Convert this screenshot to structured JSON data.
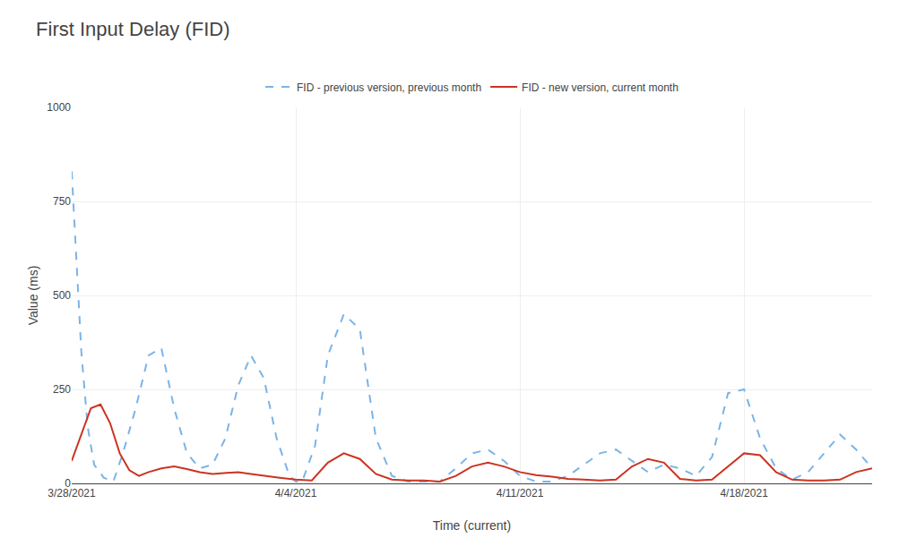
{
  "chart_data": {
    "type": "line",
    "title": "First Input Delay (FID)",
    "xlabel": "Time (current)",
    "ylabel": "Value (ms)",
    "xlim": [
      0,
      25
    ],
    "xticks": [
      {
        "value": 0,
        "label": "3/28/2021"
      },
      {
        "value": 7,
        "label": "4/4/2021"
      },
      {
        "value": 14,
        "label": "4/11/2021"
      },
      {
        "value": 21,
        "label": "4/18/2021"
      }
    ],
    "ylim": [
      0,
      1000
    ],
    "yticks": [
      0,
      250,
      500,
      750,
      1000
    ],
    "grid": true,
    "legend": "top",
    "series": [
      {
        "name": "FID - previous version, previous month",
        "color": "#7ab4e8",
        "line_style": "dashed",
        "x": [
          0,
          0.15,
          0.3,
          0.5,
          0.7,
          1.0,
          1.3,
          1.6,
          2.0,
          2.4,
          2.8,
          3.2,
          3.6,
          4.0,
          4.4,
          4.8,
          5.2,
          5.6,
          6.0,
          6.4,
          6.8,
          7.0,
          7.2,
          7.6,
          8.0,
          8.5,
          9.0,
          9.5,
          10.0,
          10.5,
          11.0,
          11.5,
          12.0,
          12.5,
          13.0,
          13.5,
          14.0,
          14.5,
          15.0,
          15.5,
          16.0,
          16.5,
          17.0,
          17.5,
          18.0,
          18.5,
          19.0,
          19.5,
          20.0,
          20.5,
          21.0,
          21.5,
          22.0,
          22.5,
          23.0,
          23.5,
          24.0,
          24.5,
          25.0
        ],
        "values": [
          830,
          600,
          350,
          150,
          50,
          15,
          5,
          80,
          200,
          340,
          360,
          200,
          80,
          40,
          50,
          120,
          260,
          340,
          280,
          120,
          20,
          5,
          5,
          100,
          340,
          450,
          410,
          120,
          20,
          5,
          5,
          5,
          40,
          80,
          90,
          60,
          20,
          5,
          5,
          20,
          50,
          80,
          90,
          60,
          30,
          50,
          40,
          20,
          70,
          240,
          250,
          120,
          40,
          10,
          30,
          80,
          130,
          90,
          40
        ]
      },
      {
        "name": "FID - new version, current month",
        "color": "#cc3322",
        "line_style": "solid",
        "x": [
          0,
          0.3,
          0.6,
          0.9,
          1.2,
          1.5,
          1.8,
          2.1,
          2.4,
          2.8,
          3.2,
          3.6,
          4.0,
          4.4,
          4.8,
          5.2,
          5.6,
          6.0,
          6.5,
          7.0,
          7.5,
          8.0,
          8.5,
          9.0,
          9.5,
          10.0,
          10.5,
          11.0,
          11.5,
          12.0,
          12.5,
          13.0,
          13.5,
          14.0,
          14.5,
          15.0,
          15.5,
          16.0,
          16.5,
          17.0,
          17.5,
          18.0,
          18.5,
          19.0,
          19.5,
          20.0,
          20.5,
          21.0,
          21.5,
          22.0,
          22.5,
          23.0,
          23.5,
          24.0,
          24.5,
          25.0
        ],
        "values": [
          60,
          130,
          200,
          210,
          160,
          80,
          35,
          20,
          30,
          40,
          45,
          38,
          30,
          25,
          28,
          30,
          25,
          20,
          15,
          10,
          8,
          55,
          80,
          65,
          25,
          10,
          8,
          8,
          5,
          20,
          45,
          55,
          45,
          30,
          22,
          18,
          12,
          10,
          8,
          10,
          45,
          65,
          55,
          12,
          8,
          10,
          45,
          80,
          75,
          30,
          10,
          8,
          8,
          10,
          30,
          40
        ]
      }
    ]
  }
}
